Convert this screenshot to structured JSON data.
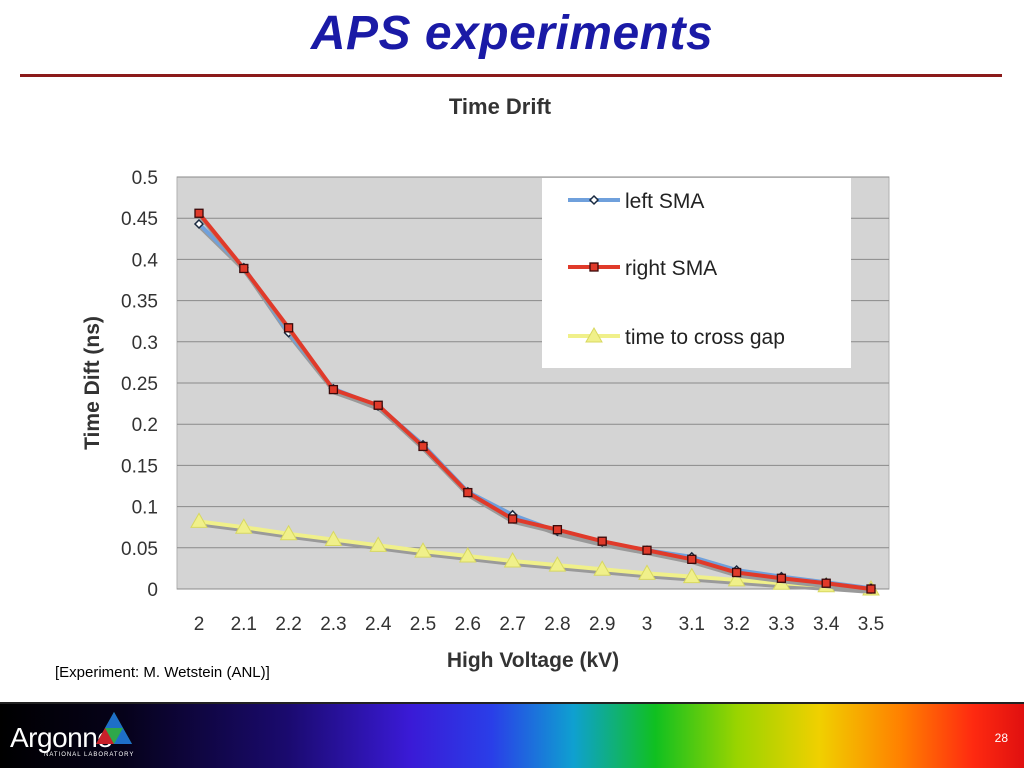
{
  "slide": {
    "title": "APS experiments",
    "credit": "[Experiment: M. Wetstein (ANL)]",
    "page_number": "28",
    "logo_text": "Argonne",
    "logo_subtext": "NATIONAL LABORATORY"
  },
  "colors": {
    "title": "#1a1aa6",
    "rule": "#8b1a1a",
    "plot_background": "#d4d4d4",
    "left_sma": "#6fa0dc",
    "right_sma": "#e03a2a",
    "cross_gap": "#f0f08a"
  },
  "chart_data": {
    "type": "line",
    "title": "Time Drift",
    "xlabel": "High Voltage (kV)",
    "ylabel": "Time Dift (ns)",
    "categories": [
      "2",
      "2.1",
      "2.2",
      "2.3",
      "2.4",
      "2.5",
      "2.6",
      "2.7",
      "2.8",
      "2.9",
      "3",
      "3.1",
      "3.2",
      "3.3",
      "3.4",
      "3.5"
    ],
    "ylim": [
      0,
      0.5
    ],
    "yticks": [
      "0",
      "0.05",
      "0.1",
      "0.15",
      "0.2",
      "0.25",
      "0.3",
      "0.35",
      "0.4",
      "0.45",
      "0.5"
    ],
    "grid": true,
    "legend_position": "top-right",
    "series": [
      {
        "name": "left SMA",
        "marker": "diamond",
        "color": "#6fa0dc",
        "values": [
          0.443,
          0.39,
          0.311,
          0.243,
          0.222,
          0.175,
          0.118,
          0.09,
          0.07,
          0.057,
          0.047,
          0.039,
          0.023,
          0.015,
          0.008,
          0.001
        ]
      },
      {
        "name": "right SMA",
        "marker": "square",
        "color": "#e03a2a",
        "values": [
          0.456,
          0.389,
          0.317,
          0.242,
          0.223,
          0.173,
          0.117,
          0.085,
          0.072,
          0.058,
          0.047,
          0.036,
          0.02,
          0.013,
          0.007,
          0.0
        ]
      },
      {
        "name": "time to cross gap",
        "marker": "triangle",
        "color": "#f0f08a",
        "values": [
          0.082,
          0.075,
          0.067,
          0.06,
          0.053,
          0.046,
          0.04,
          0.034,
          0.029,
          0.024,
          0.019,
          0.015,
          0.011,
          0.007,
          0.004,
          0.0
        ]
      }
    ]
  }
}
